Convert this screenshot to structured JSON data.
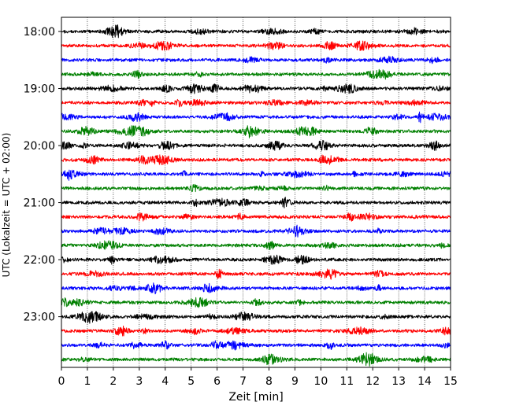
{
  "chart_data": {
    "type": "line",
    "title": "",
    "xlabel": "Zeit  [min]",
    "ylabel": "UTC (Lokalzeit = UTC + 02:00)",
    "xlim": [
      0,
      15
    ],
    "x_ticks": [
      0,
      1,
      2,
      3,
      4,
      5,
      6,
      7,
      8,
      9,
      10,
      11,
      12,
      13,
      14,
      15
    ],
    "y_tick_labels": [
      "18:00",
      "19:00",
      "20:00",
      "21:00",
      "22:00",
      "23:00"
    ],
    "trace_start_time": "18:00",
    "trace_interval_minutes": 15,
    "trace_count": 24,
    "trace_colors": [
      "#000000",
      "#ff0000",
      "#0000ff",
      "#008000"
    ],
    "grid": "vertical dotted lines at each minute",
    "legend": "none"
  }
}
